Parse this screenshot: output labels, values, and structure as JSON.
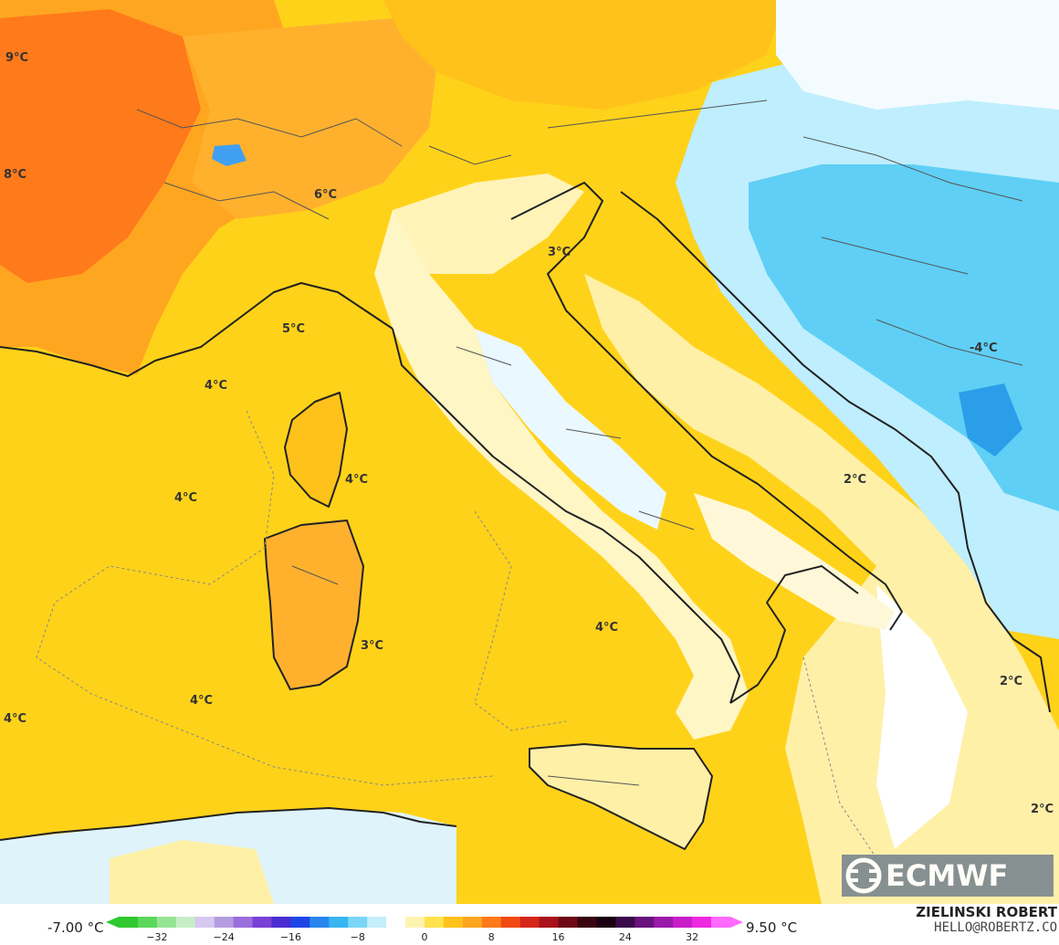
{
  "map": {
    "temperature_labels": [
      {
        "text": "9°C"
      },
      {
        "text": "8°C"
      },
      {
        "text": "6°C"
      },
      {
        "text": "3°C"
      },
      {
        "text": "5°C"
      },
      {
        "text": "4°C"
      },
      {
        "text": "4°C"
      },
      {
        "text": "4°C"
      },
      {
        "text": "2°C"
      },
      {
        "text": "3°C"
      },
      {
        "text": "4°C"
      },
      {
        "text": "4°C"
      },
      {
        "text": "4°C"
      },
      {
        "text": "2°C"
      },
      {
        "text": "2°C"
      },
      {
        "text": "-4°C"
      }
    ],
    "colors": {
      "sea_yellow": "#ffd21a",
      "light_yellow": "#fff0a8",
      "orange": "#ffa621",
      "red_orange": "#ff7a1a",
      "light_blue": "#9fe3ff",
      "blue": "#3fc4f2",
      "border": "#222222"
    }
  },
  "logo": {
    "name": "ECMWF",
    "icon": "ecmwf-logo-icon"
  },
  "colorbar": {
    "min_label": "-7.00 °C",
    "max_label": "9.50 °C",
    "ticks": [
      "−32",
      "−24",
      "−16",
      "−8",
      "0",
      "8",
      "16",
      "24",
      "32"
    ],
    "colors": [
      "#2fc82f",
      "#5bd75b",
      "#95e495",
      "#c8eec8",
      "#d6c8ee",
      "#b69de2",
      "#9a6edc",
      "#7a3fd6",
      "#4a2dd0",
      "#1f45e6",
      "#2a86ee",
      "#37b6f2",
      "#7ad6f6",
      "#c4eefb",
      "#ffffff",
      "#fff3b0",
      "#ffe24d",
      "#ffc21a",
      "#ffa621",
      "#ff7a1a",
      "#f04a12",
      "#d6261a",
      "#a8121a",
      "#6e0a14",
      "#3a0410",
      "#1a0010",
      "#3a0a4a",
      "#6a127e",
      "#9a1aaa",
      "#c81ec8",
      "#ee28e0",
      "#ff6aff"
    ]
  },
  "credits": {
    "author": "ZIELINSKI ROBERT",
    "email": "HELLO@ROBERTZ.CO"
  }
}
